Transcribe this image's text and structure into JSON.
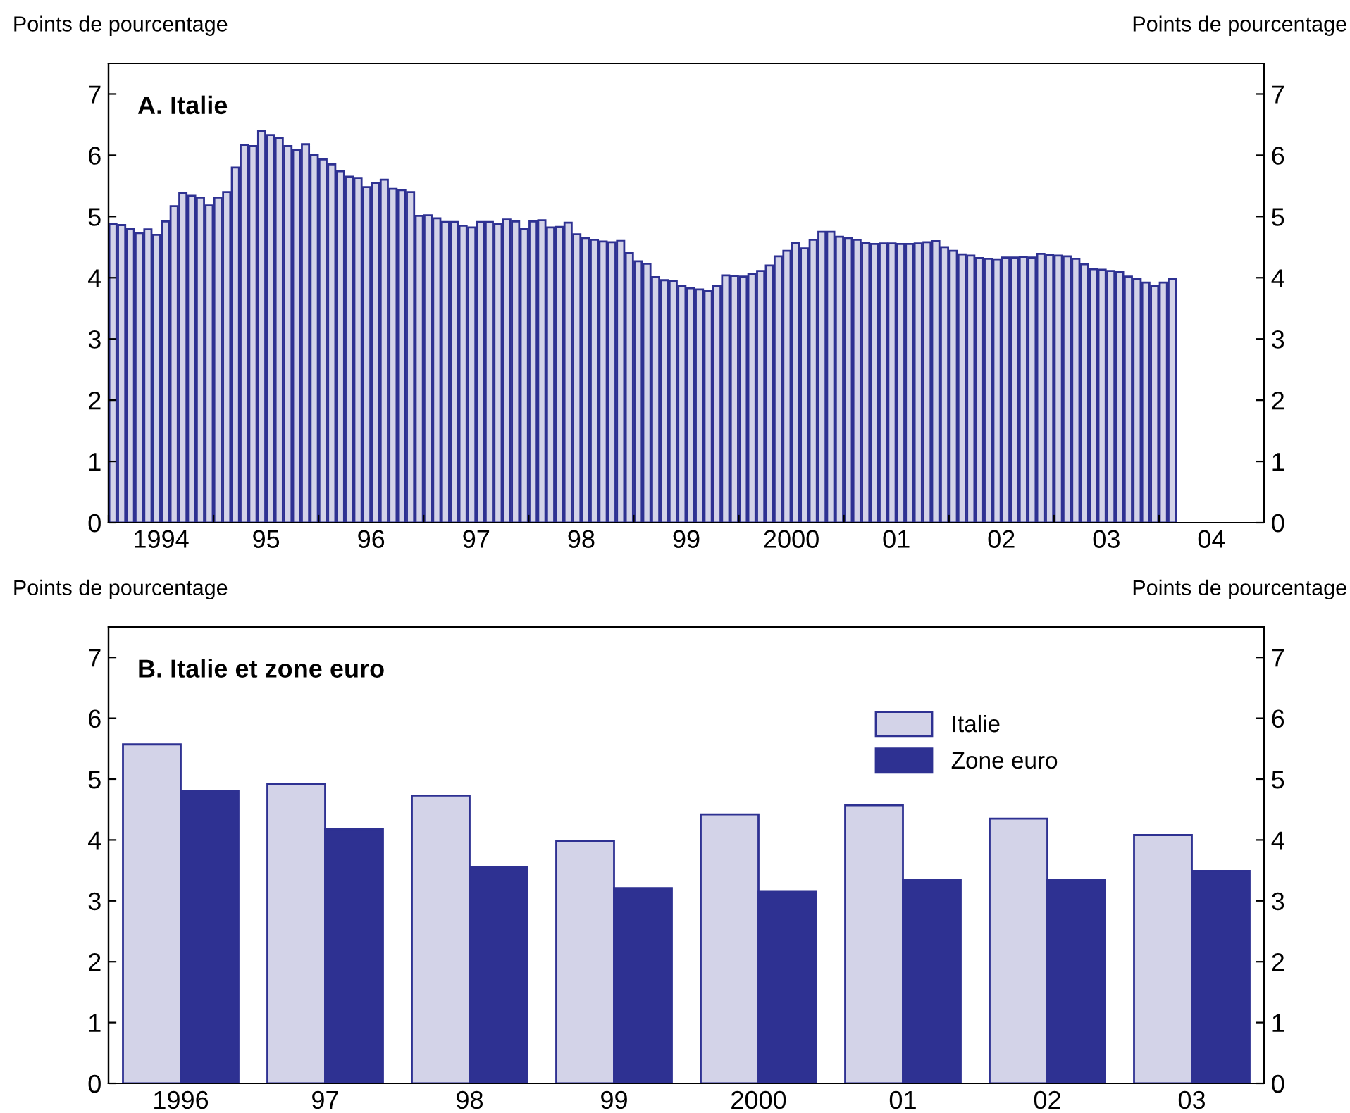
{
  "chart_data": [
    {
      "type": "bar",
      "title": "A. Italie",
      "ylabel": "Points de pourcentage",
      "y2label": "Points de pourcentage",
      "x": [
        "1994-01",
        "1994-02",
        "1994-03",
        "1994-04",
        "1994-05",
        "1994-06",
        "1994-07",
        "1994-08",
        "1994-09",
        "1994-10",
        "1994-11",
        "1994-12",
        "1995-01",
        "1995-02",
        "1995-03",
        "1995-04",
        "1995-05",
        "1995-06",
        "1995-07",
        "1995-08",
        "1995-09",
        "1995-10",
        "1995-11",
        "1995-12",
        "1996-01",
        "1996-02",
        "1996-03",
        "1996-04",
        "1996-05",
        "1996-06",
        "1996-07",
        "1996-08",
        "1996-09",
        "1996-10",
        "1996-11",
        "1996-12",
        "1997-01",
        "1997-02",
        "1997-03",
        "1997-04",
        "1997-05",
        "1997-06",
        "1997-07",
        "1997-08",
        "1997-09",
        "1997-10",
        "1997-11",
        "1997-12",
        "1998-01",
        "1998-02",
        "1998-03",
        "1998-04",
        "1998-05",
        "1998-06",
        "1998-07",
        "1998-08",
        "1998-09",
        "1998-10",
        "1998-11",
        "1998-12",
        "1999-01",
        "1999-02",
        "1999-03",
        "1999-04",
        "1999-05",
        "1999-06",
        "1999-07",
        "1999-08",
        "1999-09",
        "1999-10",
        "1999-11",
        "1999-12",
        "2000-01",
        "2000-02",
        "2000-03",
        "2000-04",
        "2000-05",
        "2000-06",
        "2000-07",
        "2000-08",
        "2000-09",
        "2000-10",
        "2000-11",
        "2000-12",
        "2001-01",
        "2001-02",
        "2001-03",
        "2001-04",
        "2001-05",
        "2001-06",
        "2001-07",
        "2001-08",
        "2001-09",
        "2001-10",
        "2001-11",
        "2001-12",
        "2002-01",
        "2002-02",
        "2002-03",
        "2002-04",
        "2002-05",
        "2002-06",
        "2002-07",
        "2002-08",
        "2002-09",
        "2002-10",
        "2002-11",
        "2002-12",
        "2003-01",
        "2003-02",
        "2003-03",
        "2003-04",
        "2003-05",
        "2003-06",
        "2003-07",
        "2003-08",
        "2003-09",
        "2003-10",
        "2003-11",
        "2003-12",
        "2004-01",
        "2004-02"
      ],
      "series": [
        {
          "color": "#d3d3e8",
          "values": [
            4.88,
            4.86,
            4.8,
            4.73,
            4.79,
            4.7,
            4.92,
            5.17,
            5.38,
            5.34,
            5.31,
            5.18,
            5.31,
            5.4,
            5.8,
            6.17,
            6.15,
            6.39,
            6.33,
            6.28,
            6.15,
            6.08,
            6.18,
            6.0,
            5.93,
            5.85,
            5.74,
            5.65,
            5.63,
            5.48,
            5.55,
            5.6,
            5.45,
            5.43,
            5.4,
            5.01,
            5.02,
            4.97,
            4.91,
            4.91,
            4.85,
            4.82,
            4.91,
            4.91,
            4.88,
            4.95,
            4.92,
            4.8,
            4.92,
            4.94,
            4.82,
            4.83,
            4.9,
            4.71,
            4.65,
            4.62,
            4.59,
            4.58,
            4.61,
            4.4,
            4.27,
            4.23,
            4.01,
            3.96,
            3.94,
            3.86,
            3.83,
            3.81,
            3.78,
            3.86,
            4.04,
            4.03,
            4.02,
            4.06,
            4.11,
            4.2,
            4.35,
            4.44,
            4.57,
            4.48,
            4.62,
            4.75,
            4.75,
            4.67,
            4.65,
            4.62,
            4.57,
            4.55,
            4.56,
            4.56,
            4.55,
            4.55,
            4.56,
            4.58,
            4.6,
            4.5,
            4.44,
            4.38,
            4.36,
            4.32,
            4.31,
            4.3,
            4.33,
            4.33,
            4.34,
            4.33,
            4.39,
            4.37,
            4.36,
            4.35,
            4.31,
            4.22,
            4.14,
            4.13,
            4.11,
            4.09,
            4.02,
            3.98,
            3.92,
            3.87,
            3.92,
            3.98
          ]
        }
      ],
      "xlim": [
        "1994-01",
        "2005-01"
      ],
      "xticks": [
        {
          "value": "1994-01",
          "label": null
        },
        {
          "value": "1994-07",
          "label": "1994"
        },
        {
          "value": "1995-01",
          "label": null
        },
        {
          "value": "1995-07",
          "label": "95"
        },
        {
          "value": "1996-01",
          "label": null
        },
        {
          "value": "1996-07",
          "label": "96"
        },
        {
          "value": "1997-01",
          "label": null
        },
        {
          "value": "1997-07",
          "label": "97"
        },
        {
          "value": "1998-01",
          "label": null
        },
        {
          "value": "1998-07",
          "label": "98"
        },
        {
          "value": "1999-01",
          "label": null
        },
        {
          "value": "1999-07",
          "label": "99"
        },
        {
          "value": "2000-01",
          "label": null
        },
        {
          "value": "2000-07",
          "label": "2000"
        },
        {
          "value": "2001-01",
          "label": null
        },
        {
          "value": "2001-07",
          "label": "01"
        },
        {
          "value": "2002-01",
          "label": null
        },
        {
          "value": "2002-07",
          "label": "02"
        },
        {
          "value": "2003-01",
          "label": null
        },
        {
          "value": "2003-07",
          "label": "03"
        },
        {
          "value": "2004-01",
          "label": null
        },
        {
          "value": "2004-07",
          "label": "04"
        }
      ],
      "ylim": [
        0,
        7.5
      ],
      "yticks": [
        0,
        1,
        2,
        3,
        4,
        5,
        6,
        7
      ],
      "y2lim": [
        0,
        7.5
      ],
      "y2ticks": [
        0,
        1,
        2,
        3,
        4,
        5,
        6,
        7
      ],
      "grid": false,
      "legend": false
    },
    {
      "type": "bar",
      "title": "B. Italie et zone euro",
      "ylabel": "Points de pourcentage",
      "y2label": "Points de pourcentage",
      "categories": [
        "1996",
        "97",
        "98",
        "99",
        "2000",
        "01",
        "02",
        "03"
      ],
      "series": [
        {
          "name": "Italie",
          "color": "#d3d3e8",
          "values": [
            5.57,
            4.92,
            4.73,
            3.98,
            4.42,
            4.57,
            4.35,
            4.08
          ]
        },
        {
          "name": "Zone euro",
          "color": "#2e3192",
          "values": [
            4.8,
            4.18,
            3.55,
            3.21,
            3.15,
            3.34,
            3.34,
            3.49
          ]
        }
      ],
      "ylim": [
        0,
        7.5
      ],
      "yticks": [
        0,
        1,
        2,
        3,
        4,
        5,
        6,
        7
      ],
      "y2lim": [
        0,
        7.5
      ],
      "y2ticks": [
        0,
        1,
        2,
        3,
        4,
        5,
        6,
        7
      ],
      "grid": false,
      "legend": "top right"
    }
  ]
}
